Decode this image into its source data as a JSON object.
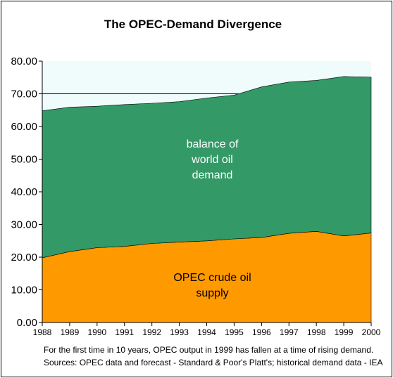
{
  "chart_data": {
    "type": "area",
    "title": "The OPEC-Demand Divergence",
    "x": [
      "1988",
      "1989",
      "1990",
      "1991",
      "1992",
      "1993",
      "1994",
      "1995",
      "1996",
      "1997",
      "1998",
      "1999",
      "2000"
    ],
    "series": [
      {
        "name": "OPEC crude oil supply",
        "label_lines": [
          "OPEC crude oil",
          "supply"
        ],
        "values": [
          19.8,
          21.7,
          22.9,
          23.3,
          24.2,
          24.6,
          25.0,
          25.6,
          26.0,
          27.3,
          27.9,
          26.5,
          27.4
        ],
        "color": "#FF9900"
      },
      {
        "name": "balance of world oil demand",
        "label_lines": [
          "balance of",
          "world oil",
          "demand"
        ],
        "values": [
          45.0,
          44.2,
          43.3,
          43.4,
          42.9,
          43.0,
          43.7,
          44.0,
          46.1,
          46.3,
          46.2,
          48.8,
          47.7
        ],
        "color": "#339966"
      }
    ],
    "ylim": [
      0,
      80
    ],
    "yticks": [
      "0.00",
      "10.00",
      "20.00",
      "30.00",
      "40.00",
      "50.00",
      "60.00",
      "70.00",
      "80.00"
    ],
    "reference_line": 70,
    "plot_background": "#F0FBFB",
    "notes": [
      "For the first time in 10 years, OPEC output in 1999 has fallen at a time of rising demand.",
      "Sources: OPEC data and forecast - Standard & Poor's Platt's; historical demand data - IEA"
    ]
  }
}
